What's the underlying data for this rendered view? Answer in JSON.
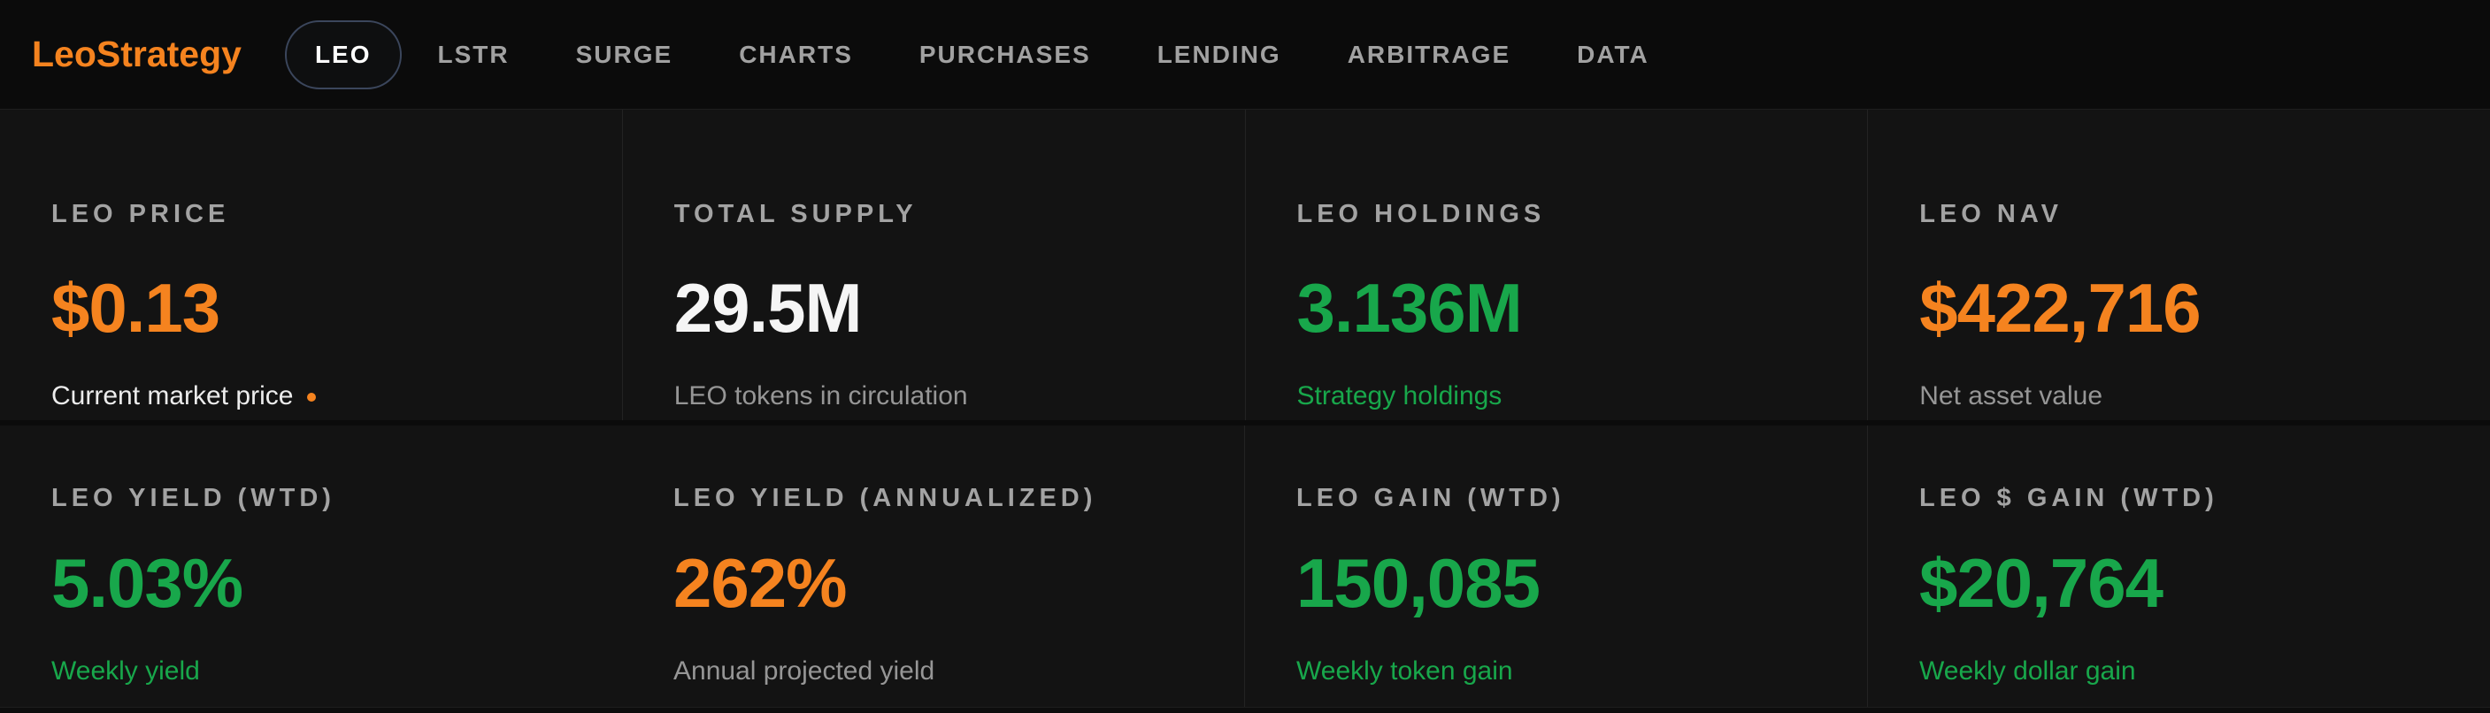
{
  "colors": {
    "orange": "#f5831f",
    "green": "#18a74b",
    "white": "#f5f5f5",
    "sub_light": "#ececec",
    "sub_gray": "#969696",
    "label_gray": "#a3a3a3",
    "nav_gray": "#a1a1a1",
    "page_bg": "#0b0b0b",
    "card_bg": "#131313",
    "divider": "#232323",
    "pill_border": "#3b465c"
  },
  "header": {
    "logo": "LeoStrategy",
    "nav": [
      {
        "label": "LEO",
        "active": true
      },
      {
        "label": "LSTR",
        "active": false
      },
      {
        "label": "SURGE",
        "active": false
      },
      {
        "label": "CHARTS",
        "active": false
      },
      {
        "label": "PURCHASES",
        "active": false
      },
      {
        "label": "LENDING",
        "active": false
      },
      {
        "label": "ARBITRAGE",
        "active": false
      },
      {
        "label": "DATA",
        "active": false
      }
    ]
  },
  "cards": [
    {
      "label": "LEO PRICE",
      "value": "$0.13",
      "sub": "Current market price",
      "tone": "orange",
      "sub_tone": "sub_light",
      "live_dot": true
    },
    {
      "label": "TOTAL SUPPLY",
      "value": "29.5M",
      "sub": "LEO tokens in circulation",
      "tone": "white",
      "sub_tone": "sub_gray",
      "live_dot": false
    },
    {
      "label": "LEO HOLDINGS",
      "value": "3.136M",
      "sub": "Strategy holdings",
      "tone": "green",
      "sub_tone": "green",
      "live_dot": false
    },
    {
      "label": "LEO NAV",
      "value": "$422,716",
      "sub": "Net asset value",
      "tone": "orange",
      "sub_tone": "sub_gray",
      "live_dot": false
    },
    {
      "label": "LEO YIELD (WTD)",
      "value": "5.03%",
      "sub": "Weekly yield",
      "tone": "green",
      "sub_tone": "green",
      "live_dot": false
    },
    {
      "label": "LEO YIELD (ANNUALIZED)",
      "value": "262%",
      "sub": "Annual projected yield",
      "tone": "orange",
      "sub_tone": "sub_gray",
      "live_dot": false
    },
    {
      "label": "LEO GAIN (WTD)",
      "value": "150,085",
      "sub": "Weekly token gain",
      "tone": "green",
      "sub_tone": "green",
      "live_dot": false
    },
    {
      "label": "LEO $ GAIN (WTD)",
      "value": "$20,764",
      "sub": "Weekly dollar gain",
      "tone": "green",
      "sub_tone": "green",
      "live_dot": false
    }
  ]
}
